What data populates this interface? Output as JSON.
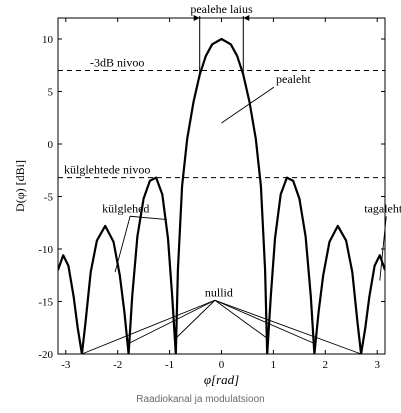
{
  "caption": "Raadiokanal ja modulatsioon",
  "chart_data": {
    "type": "line",
    "xlabel": "φ[rad]",
    "ylabel": "D(φ) [dBi]",
    "xlim": [
      -3.15,
      3.15
    ],
    "ylim": [
      -20,
      12
    ],
    "x_ticks": [
      -3,
      -2,
      -1,
      0,
      1,
      2,
      3
    ],
    "y_ticks": [
      10,
      5,
      0,
      -5,
      -10,
      -15,
      -20
    ],
    "grid": false,
    "series": [
      {
        "curve": "array factor pattern, peak 10 dBi at 0 rad, nulls at ±0.88, ±1.79, ±2.69 rad",
        "points": [
          [
            -3.15,
            -12.0
          ],
          [
            -3.05,
            -10.6
          ],
          [
            -2.95,
            -11.6
          ],
          [
            -2.85,
            -14.5
          ],
          [
            -2.77,
            -17.5
          ],
          [
            -2.69,
            -20
          ],
          [
            -2.62,
            -17.0
          ],
          [
            -2.52,
            -12.2
          ],
          [
            -2.4,
            -9.2
          ],
          [
            -2.24,
            -7.8
          ],
          [
            -2.08,
            -9.3
          ],
          [
            -1.96,
            -12.5
          ],
          [
            -1.87,
            -16.0
          ],
          [
            -1.79,
            -20
          ],
          [
            -1.72,
            -14.5
          ],
          [
            -1.62,
            -8.8
          ],
          [
            -1.5,
            -5.2
          ],
          [
            -1.38,
            -3.5
          ],
          [
            -1.26,
            -3.2
          ],
          [
            -1.14,
            -4.8
          ],
          [
            -1.03,
            -9.0
          ],
          [
            -0.95,
            -14.5
          ],
          [
            -0.88,
            -20
          ],
          [
            -0.84,
            -12.0
          ],
          [
            -0.76,
            -4.0
          ],
          [
            -0.66,
            0.5
          ],
          [
            -0.54,
            4.0
          ],
          [
            -0.42,
            6.6
          ],
          [
            -0.3,
            8.4
          ],
          [
            -0.18,
            9.5
          ],
          [
            0.0,
            10.0
          ],
          [
            0.18,
            9.5
          ],
          [
            0.3,
            8.4
          ],
          [
            0.42,
            6.6
          ],
          [
            0.54,
            4.0
          ],
          [
            0.66,
            0.5
          ],
          [
            0.76,
            -4.0
          ],
          [
            0.84,
            -12.0
          ],
          [
            0.88,
            -20
          ],
          [
            0.95,
            -14.5
          ],
          [
            1.03,
            -9.0
          ],
          [
            1.14,
            -4.8
          ],
          [
            1.26,
            -3.2
          ],
          [
            1.38,
            -3.5
          ],
          [
            1.5,
            -5.2
          ],
          [
            1.62,
            -8.8
          ],
          [
            1.72,
            -14.5
          ],
          [
            1.79,
            -20
          ],
          [
            1.87,
            -16.0
          ],
          [
            1.96,
            -12.5
          ],
          [
            2.08,
            -9.3
          ],
          [
            2.24,
            -7.8
          ],
          [
            2.4,
            -9.2
          ],
          [
            2.52,
            -12.2
          ],
          [
            2.62,
            -17.0
          ],
          [
            2.69,
            -20
          ],
          [
            2.77,
            -17.5
          ],
          [
            2.85,
            -14.5
          ],
          [
            2.95,
            -11.6
          ],
          [
            3.05,
            -10.6
          ],
          [
            3.15,
            -12.0
          ]
        ]
      }
    ],
    "reference_lines": [
      {
        "y": 7,
        "style": "dashed",
        "label": "-3dB nivoo"
      },
      {
        "y": -3.2,
        "style": "dashed",
        "label": "külglehtede nivoo"
      }
    ],
    "beamwidth": {
      "x1": -0.42,
      "x2": 0.42,
      "y": 12,
      "label": "pealehe laius"
    },
    "annotations": [
      {
        "text": "pealeht",
        "x": 1.05,
        "y": 5.8,
        "target": [
          0.0,
          2.0
        ]
      },
      {
        "text": "külglehed",
        "x": -2.3,
        "y": -6.5,
        "targets": [
          [
            -2.05,
            -12.2
          ],
          [
            -1.05,
            -7.2
          ]
        ]
      },
      {
        "text": "tagaleht",
        "x": 2.75,
        "y": -6.5,
        "target": [
          3.05,
          -13.0
        ]
      },
      {
        "text": "nullid",
        "x": -0.05,
        "y": -14.5,
        "targets": [
          [
            -2.69,
            -20
          ],
          [
            -1.79,
            -19
          ],
          [
            -0.88,
            -18.5
          ],
          [
            0.88,
            -18.5
          ],
          [
            1.79,
            -19
          ],
          [
            2.69,
            -20
          ]
        ]
      }
    ]
  }
}
